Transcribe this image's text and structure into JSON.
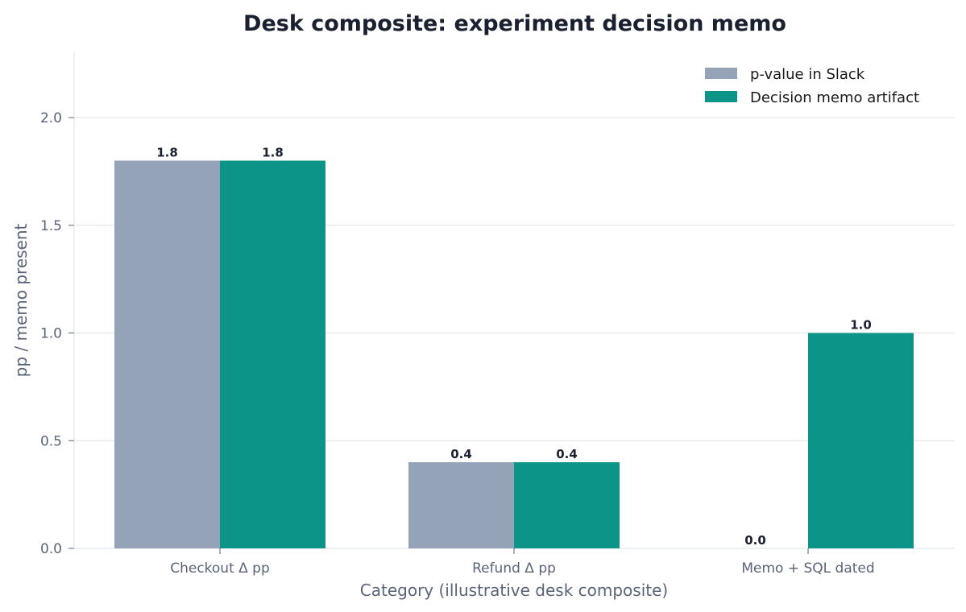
{
  "chart_data": {
    "type": "bar",
    "title": "Desk composite: experiment decision memo",
    "xlabel": "Category (illustrative desk composite)",
    "ylabel": "pp / memo present",
    "categories": [
      "Checkout Δ pp",
      "Refund Δ pp",
      "Memo + SQL dated"
    ],
    "series": [
      {
        "name": "p-value in Slack",
        "color": "#94a3b8",
        "values": [
          1.8,
          0.4,
          0.0
        ]
      },
      {
        "name": "Decision memo artifact",
        "color": "#0d9488",
        "values": [
          1.8,
          0.4,
          1.0
        ]
      }
    ],
    "ylim": [
      0,
      2.3
    ],
    "yticks": [
      0.0,
      0.5,
      1.0,
      1.5,
      2.0
    ],
    "grid": true,
    "legend_position": "top-right"
  }
}
